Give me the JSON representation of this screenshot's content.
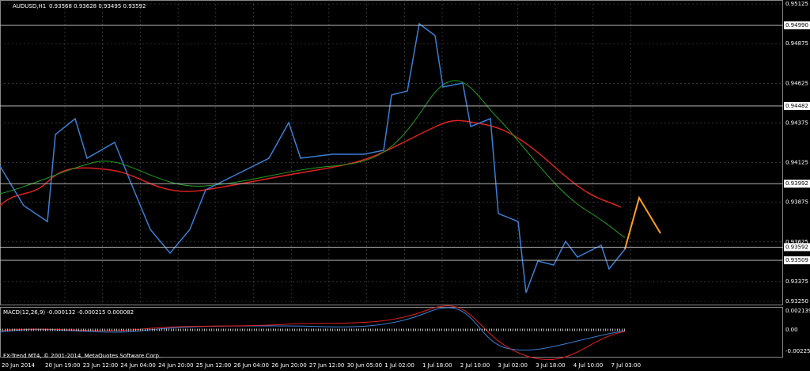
{
  "header": {
    "symbol": "AUDUSD,H1",
    "quote": "0.93568 0.93628 0.93495 0.93592"
  },
  "price_axis": {
    "labels": [
      "0.95125",
      "0.94990",
      "0.94875",
      "0.94625",
      "0.94482",
      "0.94375",
      "0.94125",
      "0.93992",
      "0.93875",
      "0.93625",
      "0.93592",
      "0.93509",
      "0.93375",
      "0.93250"
    ],
    "highlighted": [
      "0.94990",
      "0.94482",
      "0.93992",
      "0.93592",
      "0.93509"
    ]
  },
  "macd": {
    "title": "MACD(12,26,9) -0.000132 -0.000215 0.000082",
    "labels": [
      "0.002139",
      "0.00",
      "-0.002255"
    ]
  },
  "copyright": "FX-Trend MT4, © 2001-2014, MetaQuotes Software Corp.",
  "time_axis": [
    "20 Jun 2014",
    "20 Jun 19:00",
    "23 Jun 12:00",
    "24 Jun 04:00",
    "24 Jun 20:00",
    "25 Jun 12:00",
    "26 Jun 04:00",
    "26 Jun 20:00",
    "27 Jun 12:00",
    "30 Jun 05:00",
    "1 Jul 02:00",
    "1 Jul 18:00",
    "2 Jul 10:00",
    "3 Jul 02:00",
    "3 Jul 18:00",
    "4 Jul 10:00",
    "7 Jul 03:00"
  ]
}
